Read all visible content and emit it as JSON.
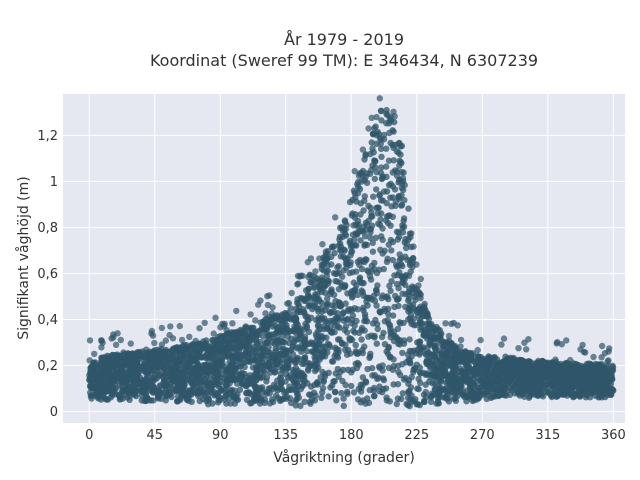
{
  "chart_data": {
    "type": "scatter",
    "title_line1": "År 1979 - 2019",
    "title_line2": "Koordinat (Sweref 99 TM): E 346434, N 6307239",
    "xlabel": "Vågriktning (grader)",
    "ylabel": "Signifikant våghöjd (m)",
    "xlim": [
      -18,
      368
    ],
    "ylim": [
      -0.05,
      1.38
    ],
    "x_ticks": [
      0,
      45,
      90,
      135,
      180,
      225,
      270,
      315,
      360
    ],
    "x_tick_labels": [
      "0",
      "45",
      "90",
      "135",
      "180",
      "225",
      "270",
      "315",
      "360"
    ],
    "y_ticks": [
      0,
      0.2,
      0.4,
      0.6,
      0.8,
      1.0,
      1.2
    ],
    "y_tick_labels": [
      "0",
      "0,2",
      "0,4",
      "0,6",
      "0,8",
      "1",
      "1,2"
    ],
    "grid": true,
    "marker_color": "#2f5569",
    "plot_background": "#e5e8f0",
    "grid_color": "#ffffff",
    "series": [
      {
        "x": [
          0,
          10,
          20,
          30,
          45,
          60,
          75,
          90,
          105,
          120,
          135,
          145,
          155,
          165,
          175,
          180,
          185,
          190,
          195,
          200,
          205,
          210,
          215,
          220,
          225,
          235,
          245,
          255,
          270,
          285,
          300,
          315,
          330,
          345,
          360
        ],
        "y_low": [
          0.05,
          0.05,
          0.05,
          0.05,
          0.04,
          0.04,
          0.03,
          0.03,
          0.03,
          0.03,
          0.02,
          0.02,
          0.02,
          0.02,
          0.02,
          0.02,
          0.02,
          0.02,
          0.02,
          0.02,
          0.02,
          0.02,
          0.02,
          0.02,
          0.02,
          0.03,
          0.03,
          0.04,
          0.05,
          0.06,
          0.06,
          0.06,
          0.06,
          0.06,
          0.06
        ],
        "y_high": [
          0.21,
          0.24,
          0.25,
          0.26,
          0.27,
          0.28,
          0.3,
          0.33,
          0.36,
          0.4,
          0.44,
          0.5,
          0.6,
          0.72,
          0.85,
          0.93,
          1.02,
          1.12,
          1.22,
          1.3,
          1.32,
          1.28,
          1.15,
          0.85,
          0.55,
          0.4,
          0.32,
          0.27,
          0.24,
          0.24,
          0.22,
          0.22,
          0.21,
          0.21,
          0.2
        ]
      }
    ]
  }
}
